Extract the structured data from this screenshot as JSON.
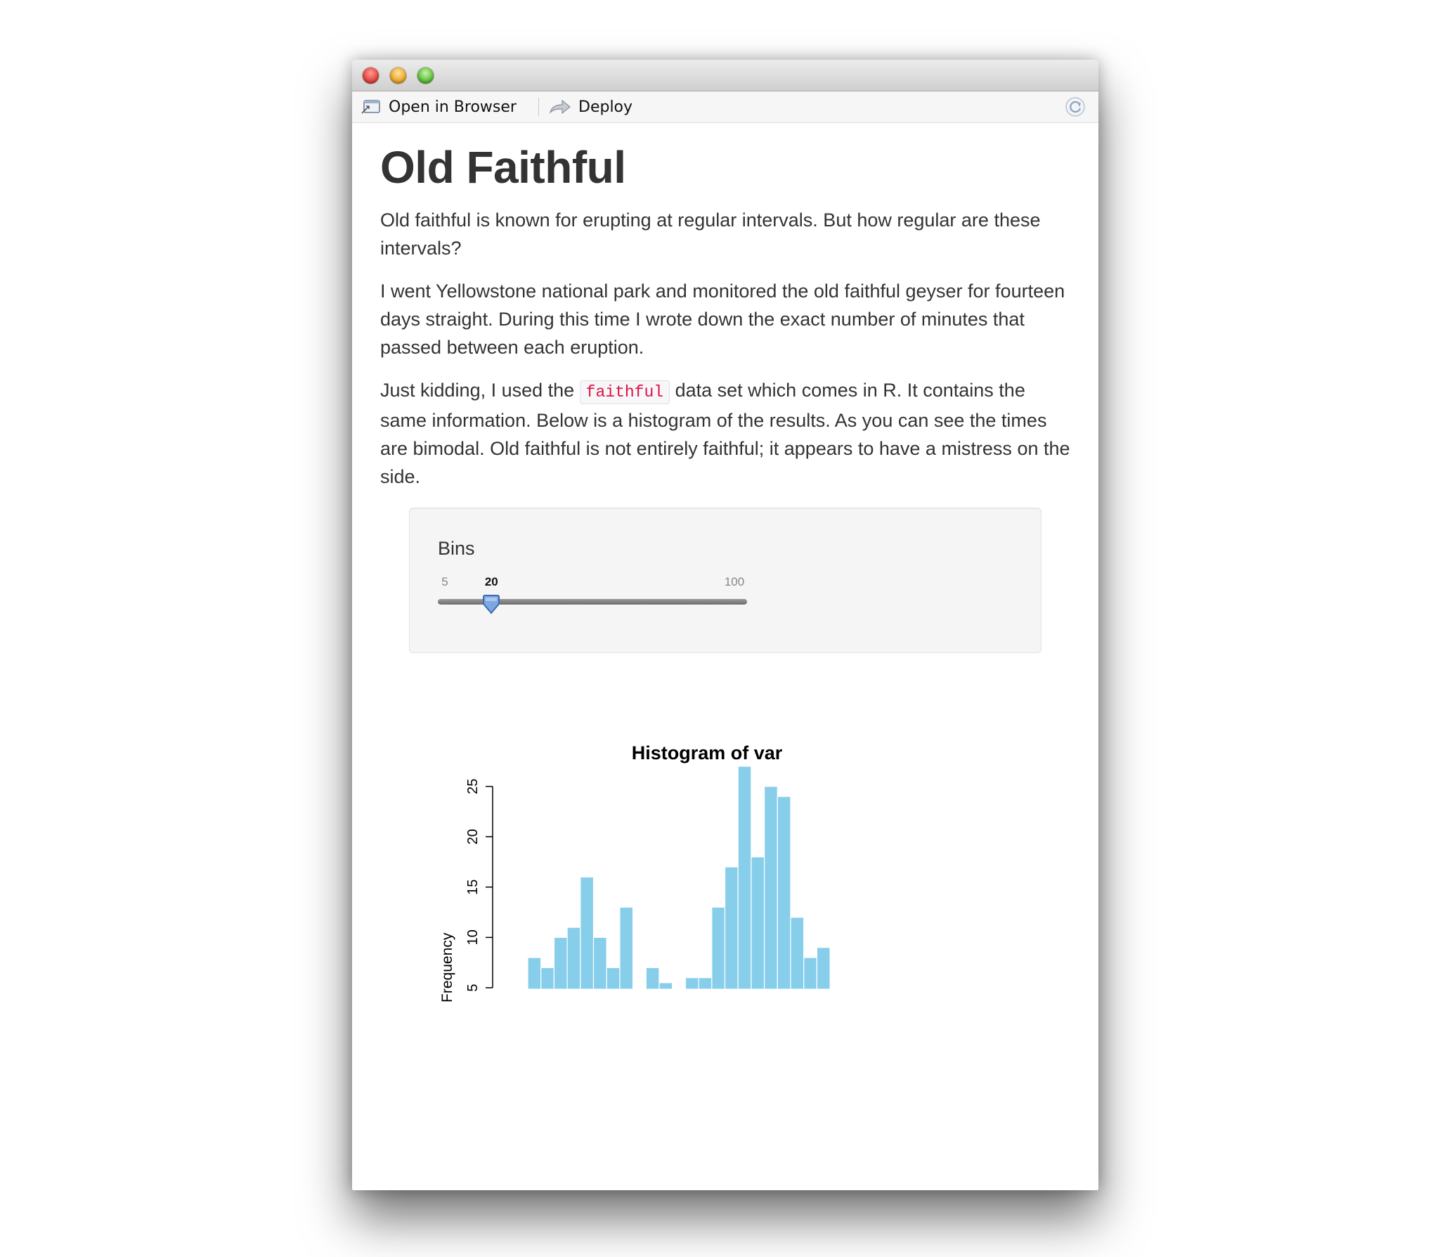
{
  "window": {
    "traffic_lights": [
      "close",
      "minimize",
      "zoom"
    ]
  },
  "toolbar": {
    "open_in_browser_label": "Open in Browser",
    "deploy_label": "Deploy",
    "refresh_icon": "refresh-icon"
  },
  "page": {
    "title": "Old Faithful",
    "para1": "Old faithful is known for erupting at regular intervals. But how regular are these intervals?",
    "para2": "I went Yellowstone national park and monitored the old faithful geyser for fourteen days straight. During this time I wrote down the exact number of minutes that passed between each eruption.",
    "para3_before": "Just kidding, I used the ",
    "para3_code": "faithful",
    "para3_after": " data set which comes in R. It contains the same information. Below is a histogram of the results. As you can see the times are bimodal. Old faithful is not entirely faithful; it appears to have a mistress on the side."
  },
  "slider": {
    "label": "Bins",
    "min": 5,
    "max": 100,
    "value": 20,
    "min_label": "5",
    "max_label": "100",
    "value_label": "20"
  },
  "colors": {
    "bar_fill": "#87ceeb",
    "text": "#333333",
    "code_text": "#dd1144"
  },
  "chart_data": {
    "type": "bar",
    "title": "Histogram of var",
    "xlabel": "",
    "ylabel": "Frequency",
    "ylim": [
      5,
      27
    ],
    "yticks": [
      5,
      10,
      15,
      20,
      25
    ],
    "values": [
      8,
      7,
      10,
      11,
      16,
      10,
      7,
      13,
      null,
      7,
      5.5,
      null,
      6,
      6,
      13,
      17,
      27,
      18,
      25,
      24,
      12,
      8,
      9
    ],
    "bar_color": "#87ceeb"
  }
}
